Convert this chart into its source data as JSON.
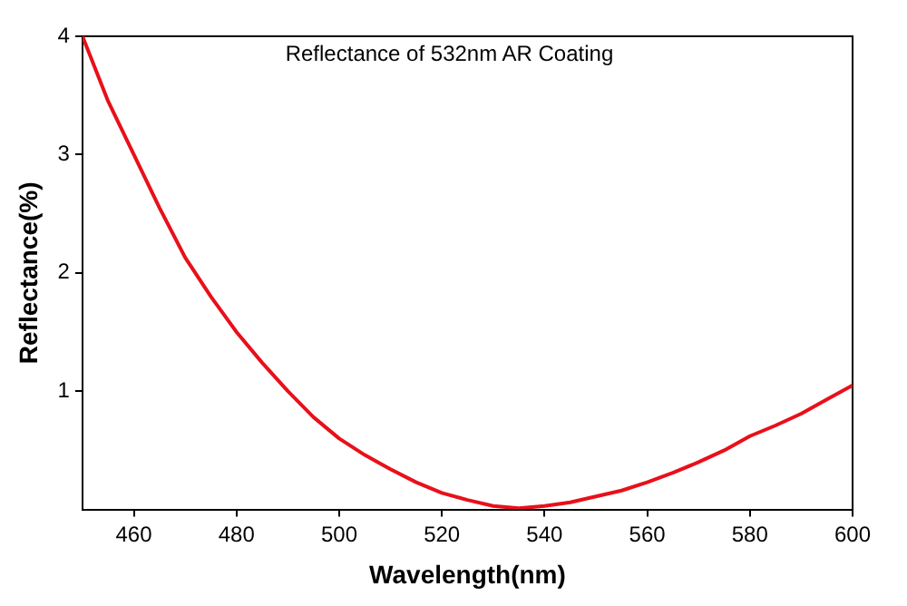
{
  "chart_data": {
    "type": "line",
    "title": "Reflectance of 532nm AR Coating",
    "xlabel": "Wavelength(nm)",
    "ylabel": "Reflectance(%)",
    "x": [
      450,
      455,
      460,
      465,
      470,
      475,
      480,
      485,
      490,
      495,
      500,
      505,
      510,
      515,
      520,
      525,
      530,
      535,
      540,
      545,
      550,
      555,
      560,
      565,
      570,
      575,
      580,
      585,
      590,
      595,
      600
    ],
    "series": [
      {
        "color": "#e8101a",
        "values": [
          4.0,
          3.45,
          3.0,
          2.55,
          2.13,
          1.8,
          1.5,
          1.24,
          1.0,
          0.78,
          0.6,
          0.46,
          0.34,
          0.23,
          0.14,
          0.08,
          0.03,
          0.01,
          0.03,
          0.06,
          0.11,
          0.16,
          0.23,
          0.31,
          0.4,
          0.5,
          0.62,
          0.71,
          0.81,
          0.93,
          1.05
        ]
      }
    ],
    "xlim": [
      450,
      600
    ],
    "xticks": [
      460,
      480,
      500,
      520,
      540,
      560,
      580,
      600
    ],
    "ylim": [
      0,
      4
    ],
    "yticks": [
      1,
      2,
      3,
      4
    ],
    "grid": false,
    "legend": false,
    "marker": "none",
    "line_style": "solid"
  }
}
